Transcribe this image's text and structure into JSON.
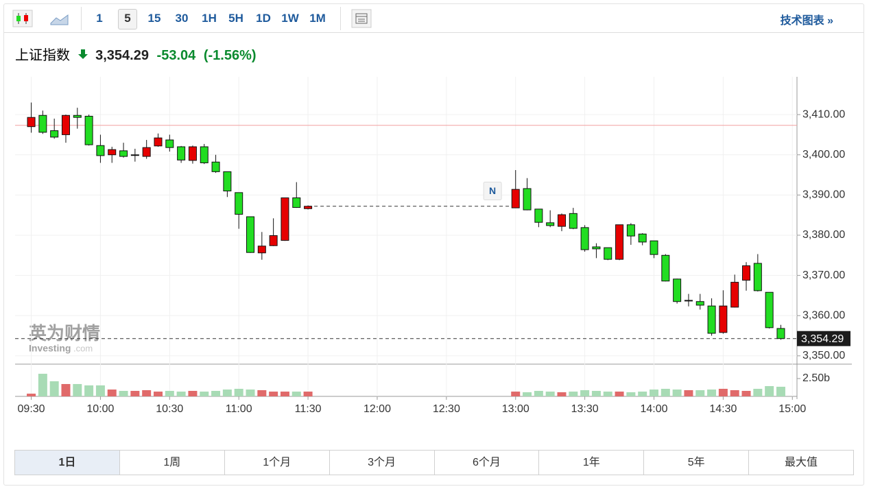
{
  "toolbar": {
    "intervals": [
      "1",
      "5",
      "15",
      "30",
      "1H",
      "5H",
      "1D",
      "1W",
      "1M"
    ],
    "selected": 1,
    "link": "技术图表 »"
  },
  "quote": {
    "name": "上证指数",
    "price": "3,354.29",
    "change": "-53.04",
    "percent": "(-1.56%)"
  },
  "watermark": {
    "cn": "英为财情",
    "brand": "Investing",
    "suffix": ".com"
  },
  "chart_data": {
    "type": "candlestick",
    "x": [
      "09:30",
      "09:35",
      "09:40",
      "09:45",
      "09:50",
      "09:55",
      "10:00",
      "10:05",
      "10:10",
      "10:15",
      "10:20",
      "10:25",
      "10:30",
      "10:35",
      "10:40",
      "10:45",
      "10:50",
      "10:55",
      "11:00",
      "11:05",
      "11:10",
      "11:15",
      "11:20",
      "11:25",
      "11:30",
      "13:00",
      "13:05",
      "13:10",
      "13:15",
      "13:20",
      "13:25",
      "13:30",
      "13:35",
      "13:40",
      "13:45",
      "13:50",
      "13:55",
      "14:00",
      "14:05",
      "14:10",
      "14:15",
      "14:20",
      "14:25",
      "14:30",
      "14:35",
      "14:40",
      "14:45",
      "14:50",
      "14:55"
    ],
    "open": [
      3407,
      3409.8,
      3406,
      3405,
      3409.8,
      3409.6,
      3402.3,
      3400,
      3401,
      3400,
      3399.6,
      3402.2,
      3403.7,
      3402,
      3398.6,
      3402,
      3398.2,
      3395.8,
      3390.6,
      3384.6,
      3375.6,
      3377.4,
      3378.7,
      3389.3,
      3386.6,
      3386.8,
      3391.6,
      3386.5,
      3383.1,
      3382.2,
      3385.4,
      3381.9,
      3377.1,
      3376.9,
      3374,
      3382.6,
      3380.3,
      3378.6,
      3375,
      3369.1,
      3363.8,
      3363.5,
      3362.4,
      3355.8,
      3362.1,
      3368.8,
      3373,
      3365.8,
      3356.8
    ],
    "high": [
      3413,
      3411,
      3409,
      3410,
      3411.7,
      3410,
      3405,
      3402,
      3403,
      3401.5,
      3403.7,
      3405.3,
      3405,
      3402.2,
      3402.3,
      3402.7,
      3400,
      3395.8,
      3390.6,
      3384.6,
      3380.8,
      3384.2,
      3389.3,
      3393.2,
      3387.4,
      3396.2,
      3394.2,
      3386.5,
      3386.2,
      3385.4,
      3386.8,
      3382.5,
      3378,
      3376.9,
      3382.6,
      3383,
      3380.5,
      3378.6,
      3375.3,
      3369.2,
      3365.4,
      3365.4,
      3364.3,
      3366.3,
      3370.2,
      3373.3,
      3375.3,
      3365.8,
      3357.7
    ],
    "low": [
      3405.5,
      3405.2,
      3404,
      3403,
      3406.5,
      3402.3,
      3398,
      3398,
      3399.3,
      3398.3,
      3399,
      3402,
      3400.8,
      3398,
      3397.8,
      3397.7,
      3395.5,
      3389.5,
      3381.6,
      3375.6,
      3373.9,
      3377.3,
      3378.6,
      3386.8,
      3386.4,
      3386.8,
      3386.2,
      3382,
      3382,
      3381,
      3381.5,
      3375.9,
      3374.3,
      3373.8,
      3373.8,
      3377.6,
      3377.5,
      3374.3,
      3368.5,
      3363,
      3362.3,
      3361.5,
      3355,
      3355.5,
      3362,
      3366.2,
      3366,
      3356.8,
      3354
    ],
    "close": [
      3409.3,
      3405.6,
      3404.4,
      3409.8,
      3409.3,
      3402.5,
      3399.8,
      3401.3,
      3399.6,
      3400,
      3401.8,
      3404.2,
      3401.8,
      3398.7,
      3402,
      3398,
      3395.8,
      3391,
      3385.2,
      3375.7,
      3377.3,
      3379.9,
      3389.3,
      3386.9,
      3387.2,
      3391.4,
      3386.3,
      3383.2,
      3382.4,
      3385.1,
      3381.7,
      3376.4,
      3376.6,
      3374,
      3382.6,
      3379.8,
      3378.3,
      3375.2,
      3368.6,
      3363.5,
      3363.8,
      3362.6,
      3355.6,
      3362.4,
      3368.3,
      3372.4,
      3366.2,
      3357,
      3354.29
    ],
    "volume": [
      0.38,
      3.17,
      2.12,
      1.73,
      1.73,
      1.54,
      1.54,
      0.96,
      0.77,
      0.77,
      0.87,
      0.67,
      0.77,
      0.67,
      0.77,
      0.67,
      0.77,
      0.96,
      1.06,
      0.96,
      0.87,
      0.67,
      0.67,
      0.67,
      0.67,
      0.67,
      0.58,
      0.77,
      0.67,
      0.58,
      0.67,
      0.87,
      0.77,
      0.67,
      0.67,
      0.58,
      0.67,
      0.96,
      1.06,
      0.96,
      0.87,
      0.87,
      0.96,
      1.06,
      0.87,
      0.77,
      1.06,
      1.44,
      1.35
    ],
    "xlim": [
      "09:23",
      "15:02"
    ],
    "xticks": [
      "09:30",
      "10:00",
      "10:30",
      "11:00",
      "11:30",
      "12:00",
      "12:30",
      "13:00",
      "13:30",
      "14:00",
      "14:30",
      "15:00"
    ],
    "ylim": [
      3348.1,
      3419.4
    ],
    "yticks": [
      {
        "value": 3350,
        "label": "3,350.00"
      },
      {
        "value": 3360,
        "label": "3,360.00"
      },
      {
        "value": 3370,
        "label": "3,370.00"
      },
      {
        "value": 3380,
        "label": "3,380.00"
      },
      {
        "value": 3390,
        "label": "3,390.00"
      },
      {
        "value": 3400,
        "label": "3,400.00"
      },
      {
        "value": 3410,
        "label": "3,410.00"
      }
    ],
    "volume_lim": [
      0,
      4.33
    ],
    "volume_ticks": [
      {
        "value": 2.5,
        "label": "2.50b"
      }
    ],
    "prev_close": 3407.33,
    "last_price": {
      "value": 3354.29,
      "label": "3,354.29"
    },
    "marker": {
      "x": "12:50",
      "value": 3391,
      "label": "N"
    },
    "up_color": "#e60000",
    "down_color": "#22dd22",
    "volume_up_color": "#e06a6a",
    "volume_down_color": "#a8dbb5",
    "prev_close_color": "#f2a0a0",
    "grid": true
  },
  "range_tabs": {
    "items": [
      "1日",
      "1周",
      "1个月",
      "3个月",
      "6个月",
      "1年",
      "5年",
      "最大值"
    ],
    "selected": 0
  }
}
